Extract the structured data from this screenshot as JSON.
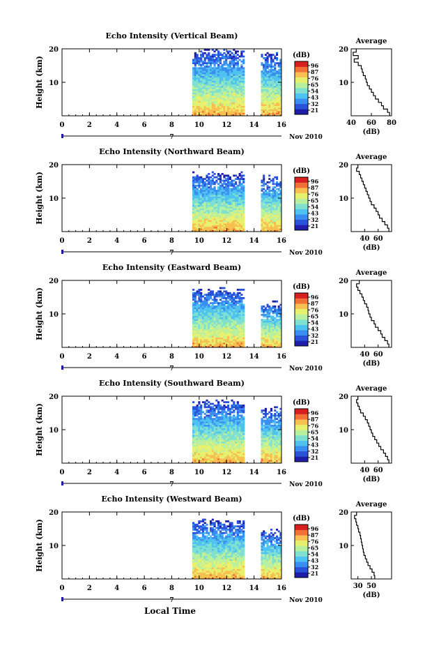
{
  "figure": {
    "x_axis_label": "Local Time",
    "date_label": "Nov 2010",
    "day_marker_label": "7",
    "colorbar_unit": "(dB)",
    "colorbar_ticks": [
      "96",
      "87",
      "76",
      "65",
      "54",
      "43",
      "32",
      "21"
    ],
    "colors": {
      "scale": [
        "#1e1ea8",
        "#2a52d8",
        "#3a8ef0",
        "#4fc2f0",
        "#7fe0d0",
        "#b8f0a0",
        "#e8f070",
        "#f8c050",
        "#f07038",
        "#d82020"
      ]
    }
  },
  "chart_data": [
    {
      "type": "heatmap",
      "title": "Echo Intensity (Vertical Beam)",
      "xlabel": "",
      "ylabel": "Height (km)",
      "xlim": [
        0,
        16
      ],
      "ylim": [
        0,
        20
      ],
      "x_ticks": [
        "0",
        "2",
        "4",
        "6",
        "8",
        "10",
        "12",
        "14",
        "16"
      ],
      "y_ticks": [
        "10",
        "20"
      ],
      "colorbar_label": "(dB)",
      "colorbar_ticks": [
        "96",
        "87",
        "76",
        "65",
        "54",
        "43",
        "32",
        "21"
      ],
      "data_segments": [
        [
          9.5,
          13.3
        ],
        [
          14.5,
          16
        ]
      ],
      "top_km": [
        20,
        19
      ],
      "profile": {
        "title": "Average",
        "xlabel": "(dB)",
        "ylabel": "",
        "xlim": [
          40,
          80
        ],
        "ylim": [
          0,
          20
        ],
        "x_ticks": [
          "40",
          "60",
          "80"
        ],
        "y_ticks": [
          "10",
          "20"
        ],
        "height_km": [
          1,
          2,
          3,
          4,
          5,
          6,
          7,
          8,
          9,
          10,
          11,
          12,
          13,
          14,
          15,
          16,
          17,
          18,
          19,
          20
        ],
        "values_db": [
          78,
          76,
          72,
          70,
          67,
          64,
          62,
          60,
          58,
          56,
          55,
          54,
          52,
          51,
          50,
          47,
          43,
          47,
          42,
          45
        ]
      }
    },
    {
      "type": "heatmap",
      "title": "Echo Intensity (Northward Beam)",
      "xlabel": "",
      "ylabel": "Height (km)",
      "xlim": [
        0,
        16
      ],
      "ylim": [
        0,
        20
      ],
      "x_ticks": [
        "0",
        "2",
        "4",
        "6",
        "8",
        "10",
        "12",
        "14",
        "16"
      ],
      "y_ticks": [
        "10",
        "20"
      ],
      "colorbar_label": "(dB)",
      "colorbar_ticks": [
        "96",
        "87",
        "76",
        "65",
        "54",
        "43",
        "32",
        "21"
      ],
      "data_segments": [
        [
          9.5,
          13.3
        ],
        [
          14.5,
          16
        ]
      ],
      "top_km": [
        18,
        17
      ],
      "profile": {
        "title": "Average",
        "xlabel": "(dB)",
        "ylabel": "",
        "xlim": [
          20,
          80
        ],
        "ylim": [
          0,
          20
        ],
        "x_ticks": [
          "40",
          "60"
        ],
        "y_ticks": [
          "10",
          "20"
        ],
        "height_km": [
          1,
          2,
          3,
          4,
          5,
          6,
          7,
          8,
          9,
          10,
          11,
          12,
          13,
          14,
          15,
          16,
          17,
          18,
          19,
          20
        ],
        "values_db": [
          76,
          74,
          70,
          66,
          62,
          60,
          57,
          54,
          50,
          48,
          46,
          44,
          42,
          40,
          38,
          36,
          34,
          32,
          28,
          30
        ]
      }
    },
    {
      "type": "heatmap",
      "title": "Echo Intensity (Eastward Beam)",
      "xlabel": "",
      "ylabel": "Height (km)",
      "xlim": [
        0,
        16
      ],
      "ylim": [
        0,
        20
      ],
      "x_ticks": [
        "0",
        "2",
        "4",
        "6",
        "8",
        "10",
        "12",
        "14",
        "16"
      ],
      "y_ticks": [
        "10",
        "20"
      ],
      "colorbar_label": "(dB)",
      "colorbar_ticks": [
        "96",
        "87",
        "76",
        "65",
        "54",
        "43",
        "32",
        "21"
      ],
      "data_segments": [
        [
          9.5,
          13.3
        ],
        [
          14.5,
          16
        ]
      ],
      "top_km": [
        18,
        14
      ],
      "profile": {
        "title": "Average",
        "xlabel": "(dB)",
        "ylabel": "",
        "xlim": [
          20,
          80
        ],
        "ylim": [
          0,
          20
        ],
        "x_ticks": [
          "40",
          "60"
        ],
        "y_ticks": [
          "10",
          "20"
        ],
        "height_km": [
          1,
          2,
          3,
          4,
          5,
          6,
          7,
          8,
          9,
          10,
          11,
          12,
          13,
          14,
          15,
          16,
          17,
          18,
          19,
          20
        ],
        "values_db": [
          76,
          74,
          70,
          66,
          64,
          60,
          56,
          54,
          50,
          48,
          46,
          45,
          43,
          40,
          38,
          36,
          33,
          30,
          28,
          32
        ]
      }
    },
    {
      "type": "heatmap",
      "title": "Echo Intensity (Southward Beam)",
      "xlabel": "",
      "ylabel": "Height (km)",
      "xlim": [
        0,
        16
      ],
      "ylim": [
        0,
        20
      ],
      "x_ticks": [
        "0",
        "2",
        "4",
        "6",
        "8",
        "10",
        "12",
        "14",
        "16"
      ],
      "y_ticks": [
        "10",
        "20"
      ],
      "colorbar_label": "(dB)",
      "colorbar_ticks": [
        "96",
        "87",
        "76",
        "65",
        "54",
        "43",
        "32",
        "21"
      ],
      "data_segments": [
        [
          9.5,
          13.3
        ],
        [
          14.5,
          16
        ]
      ],
      "top_km": [
        19,
        17
      ],
      "profile": {
        "title": "Average",
        "xlabel": "(dB)",
        "ylabel": "",
        "xlim": [
          20,
          80
        ],
        "ylim": [
          0,
          20
        ],
        "x_ticks": [
          "40",
          "60"
        ],
        "y_ticks": [
          "10",
          "20"
        ],
        "height_km": [
          1,
          2,
          3,
          4,
          5,
          6,
          7,
          8,
          9,
          10,
          11,
          12,
          13,
          14,
          15,
          16,
          17,
          18,
          19,
          20
        ],
        "values_db": [
          76,
          74,
          71,
          68,
          64,
          61,
          58,
          55,
          52,
          50,
          48,
          46,
          44,
          41,
          38,
          34,
          32,
          30,
          28,
          30
        ]
      }
    },
    {
      "type": "heatmap",
      "title": "Echo Intensity (Westward Beam)",
      "xlabel": "Local Time",
      "ylabel": "Height (km)",
      "xlim": [
        0,
        16
      ],
      "ylim": [
        0,
        20
      ],
      "x_ticks": [
        "0",
        "2",
        "4",
        "6",
        "8",
        "10",
        "12",
        "14",
        "16"
      ],
      "y_ticks": [
        "10",
        "20"
      ],
      "colorbar_label": "(dB)",
      "colorbar_ticks": [
        "96",
        "87",
        "76",
        "65",
        "54",
        "43",
        "32",
        "21"
      ],
      "data_segments": [
        [
          9.5,
          13.3
        ],
        [
          14.5,
          16
        ]
      ],
      "top_km": [
        18,
        15
      ],
      "profile": {
        "title": "Average",
        "xlabel": "(dB)",
        "ylabel": "",
        "xlim": [
          20,
          80
        ],
        "ylim": [
          0,
          20
        ],
        "x_ticks": [
          "30",
          "50"
        ],
        "y_ticks": [
          "10",
          "20"
        ],
        "height_km": [
          1,
          2,
          3,
          4,
          5,
          6,
          7,
          8,
          9,
          10,
          11,
          12,
          13,
          14,
          15,
          16,
          17,
          18,
          19,
          20
        ],
        "values_db": [
          55,
          54,
          51,
          48,
          45,
          43,
          41,
          39,
          38,
          37,
          36,
          35,
          34,
          33,
          31,
          30,
          28,
          27,
          25,
          28
        ]
      }
    }
  ]
}
